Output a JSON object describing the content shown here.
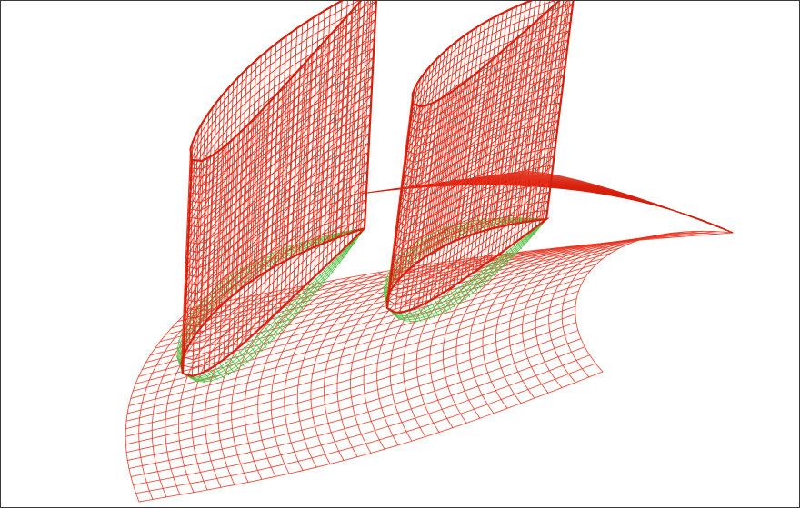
{
  "figure": {
    "background": "#ffffff",
    "border_color": "#3a3a3a"
  },
  "colors": {
    "mesh": "#e8321e",
    "mesh_dense": "#d8200e",
    "boundary_layer": "#55c24a"
  },
  "components": {
    "hub": "hub-surface-mesh",
    "blades": [
      "blade-1-mesh",
      "blade-2-mesh"
    ],
    "layers": [
      "blade-1-boundary-layer",
      "blade-2-boundary-layer"
    ]
  }
}
